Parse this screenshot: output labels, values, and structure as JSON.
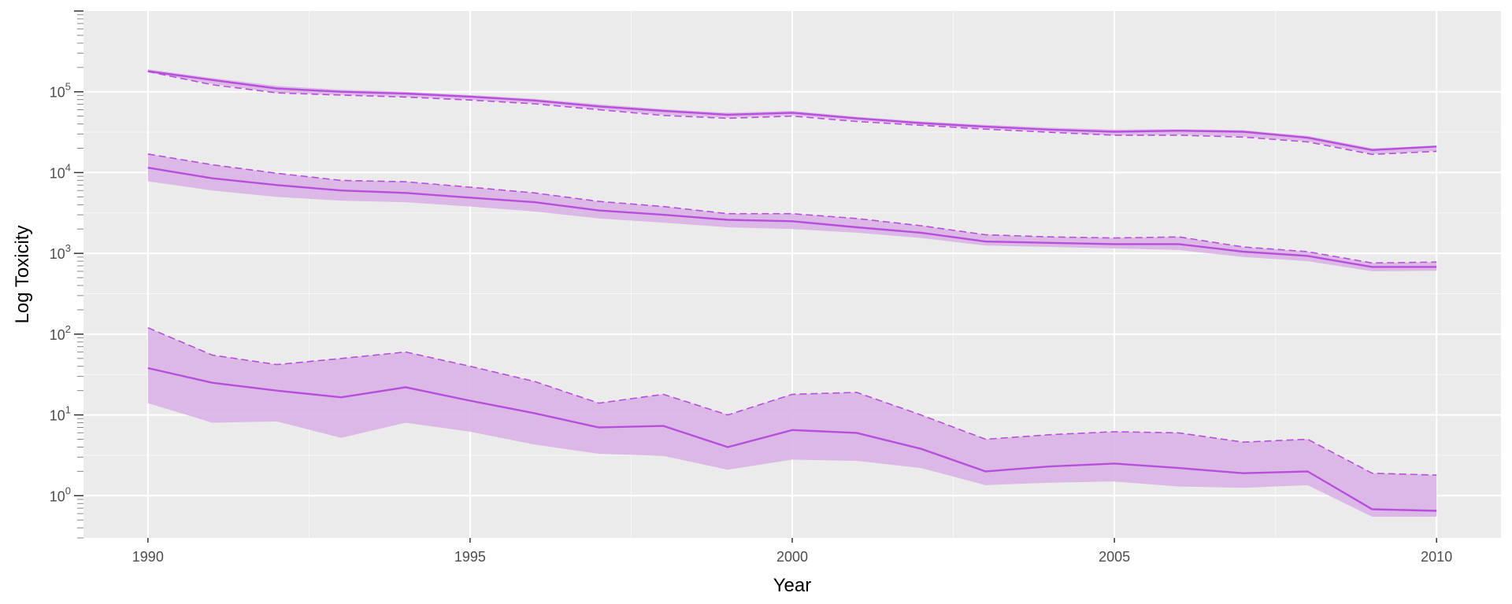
{
  "chart_data": {
    "type": "line",
    "title": "",
    "xlabel": "Year",
    "ylabel": "Log Toxicity",
    "y_scale": "log10",
    "xlim": [
      1989,
      2011
    ],
    "ylim": [
      0.3,
      1000000
    ],
    "x_ticks": [
      1990,
      1995,
      2000,
      2005,
      2010
    ],
    "y_ticks": [
      {
        "value": 1,
        "label": "10",
        "exp": "0"
      },
      {
        "value": 10,
        "label": "10",
        "exp": "1"
      },
      {
        "value": 100,
        "label": "10",
        "exp": "2"
      },
      {
        "value": 1000,
        "label": "10",
        "exp": "3"
      },
      {
        "value": 10000,
        "label": "10",
        "exp": "4"
      },
      {
        "value": 100000,
        "label": "10",
        "exp": "5"
      }
    ],
    "grid": true,
    "colors": {
      "panel": "#ebebeb",
      "grid_major": "#ffffff",
      "line": "#b84fdc",
      "ribbon": "#d9b3e6"
    },
    "x": [
      1990,
      1991,
      1992,
      1993,
      1994,
      1995,
      1996,
      1997,
      1998,
      1999,
      2000,
      2001,
      2002,
      2003,
      2004,
      2005,
      2006,
      2007,
      2008,
      2009,
      2010
    ],
    "series": [
      {
        "median": [
          180000,
          140000,
          110000,
          100000,
          95000,
          87000,
          78000,
          66000,
          58000,
          52000,
          55000,
          47000,
          41000,
          37000,
          34000,
          32000,
          33000,
          32000,
          27000,
          19000,
          21000
        ],
        "upper": [
          190000,
          148000,
          118000,
          106000,
          100000,
          91000,
          82000,
          70000,
          61000,
          55000,
          58000,
          49000,
          43000,
          39000,
          36000,
          34000,
          34500,
          33500,
          28500,
          20000,
          21500
        ],
        "lower": [
          175000,
          125000,
          98000,
          92000,
          87000,
          80000,
          72000,
          61000,
          52000,
          48000,
          51000,
          44000,
          39000,
          35000,
          32000,
          29000,
          29500,
          28000,
          24500,
          17000,
          18500
        ],
        "dashed": [
          178000,
          122000,
          97000,
          91000,
          86000,
          79000,
          71000,
          60000,
          51000,
          47000,
          50000,
          43000,
          38500,
          34500,
          31500,
          29000,
          29000,
          27500,
          24000,
          16800,
          18300
        ]
      },
      {
        "median": [
          11500,
          8500,
          7000,
          6000,
          5600,
          4900,
          4300,
          3400,
          3000,
          2600,
          2500,
          2100,
          1800,
          1400,
          1350,
          1300,
          1300,
          1050,
          930,
          680,
          680
        ],
        "upper": [
          17000,
          12500,
          9800,
          8000,
          7700,
          6600,
          5600,
          4400,
          3800,
          3100,
          3100,
          2700,
          2200,
          1700,
          1600,
          1550,
          1600,
          1200,
          1050,
          760,
          780
        ],
        "lower": [
          7800,
          6000,
          5000,
          4500,
          4300,
          3800,
          3300,
          2700,
          2400,
          2100,
          2000,
          1800,
          1550,
          1250,
          1200,
          1150,
          1100,
          900,
          800,
          600,
          610
        ],
        "dashed": [
          17000,
          12500,
          9800,
          8000,
          7700,
          6600,
          5600,
          4400,
          3800,
          3100,
          3100,
          2700,
          2200,
          1700,
          1600,
          1550,
          1600,
          1200,
          1050,
          760,
          780
        ]
      },
      {
        "median": [
          38,
          25,
          20,
          16.5,
          22,
          15,
          10.5,
          7,
          7.3,
          4,
          6.5,
          6,
          3.8,
          2,
          2.3,
          2.5,
          2.2,
          1.9,
          2,
          0.68,
          0.65
        ],
        "upper": [
          120,
          55,
          42,
          50,
          60,
          40,
          26,
          14,
          18,
          10,
          18,
          19,
          10,
          5,
          5.7,
          6.2,
          6,
          4.6,
          5,
          1.9,
          1.8
        ],
        "lower": [
          14,
          8,
          8.3,
          5.2,
          8,
          6.2,
          4.3,
          3.3,
          3.1,
          2.1,
          2.8,
          2.7,
          2.2,
          1.35,
          1.45,
          1.5,
          1.3,
          1.25,
          1.35,
          0.55,
          0.55
        ],
        "dashed": [
          120,
          55,
          42,
          50,
          60,
          40,
          26,
          14,
          18,
          10,
          18,
          19,
          10,
          5,
          5.7,
          6.2,
          6,
          4.6,
          5,
          1.9,
          1.8
        ]
      }
    ]
  }
}
